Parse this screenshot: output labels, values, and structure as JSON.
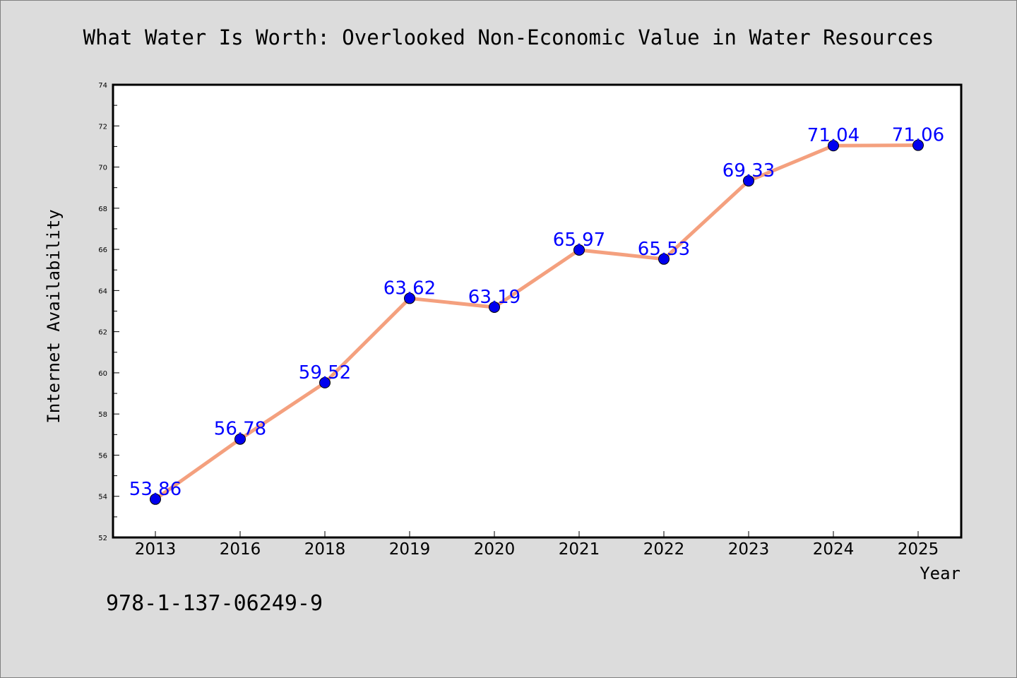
{
  "isbn": "978-1-137-06249-9",
  "colors": {
    "line": "#f4a07e",
    "marker": "#0000ee",
    "data_label": "#0000ff",
    "background": "#dcdcdc",
    "plot_bg": "#ffffff"
  },
  "chart_data": {
    "type": "line",
    "title": "What Water Is Worth: Overlooked Non-Economic Value in Water Resources",
    "xlabel": "Year",
    "ylabel": "Internet Availability",
    "categories": [
      "2013",
      "2016",
      "2018",
      "2019",
      "2020",
      "2021",
      "2022",
      "2023",
      "2024",
      "2025"
    ],
    "values": [
      53.86,
      56.78,
      59.52,
      63.62,
      63.19,
      65.97,
      65.53,
      69.33,
      71.04,
      71.06
    ],
    "data_labels": [
      "53.86",
      "56.78",
      "59.52",
      "63.62",
      "63.19",
      "65.97",
      "65.53",
      "69.33",
      "71.04",
      "71.06"
    ],
    "ylim": [
      52,
      74
    ],
    "yticks": [
      "52",
      "54",
      "56",
      "58",
      "60",
      "62",
      "64",
      "66",
      "68",
      "70",
      "72",
      "74"
    ],
    "grid": false,
    "legend": "none"
  }
}
